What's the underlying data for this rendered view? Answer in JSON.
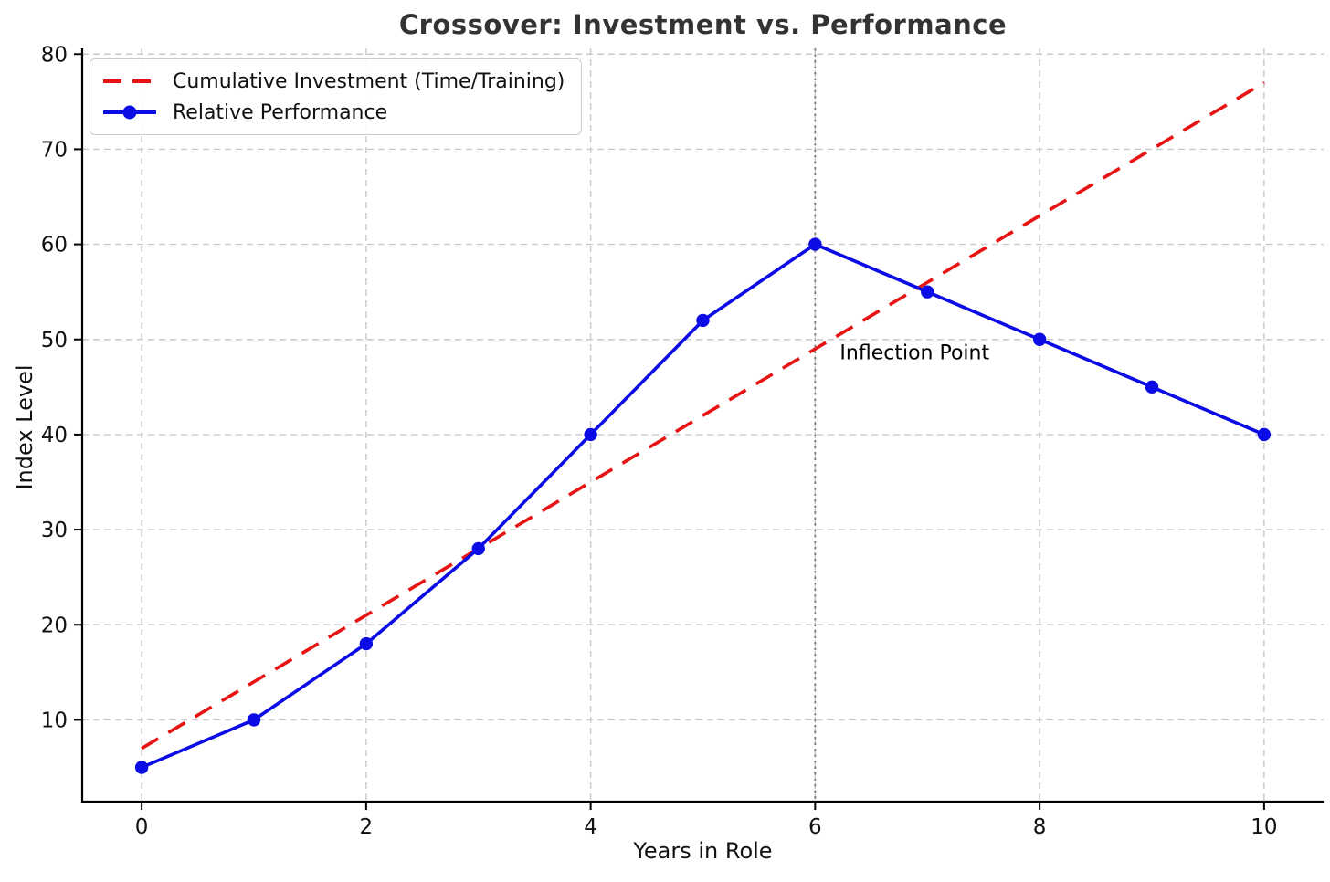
{
  "chart_data": {
    "type": "line",
    "title": "Crossover: Investment vs. Performance",
    "xlabel": "Years in Role",
    "ylabel": "Index Level",
    "x": [
      0,
      1,
      2,
      3,
      4,
      5,
      6,
      7,
      8,
      9,
      10
    ],
    "series": [
      {
        "name": "Cumulative Investment (Time/Training)",
        "values": [
          7,
          14,
          21,
          28,
          35,
          42,
          49,
          56,
          63,
          70,
          77
        ],
        "color": "#e81414",
        "style": "dashed",
        "marker": "none"
      },
      {
        "name": "Relative Performance",
        "values": [
          5,
          10,
          18,
          28,
          40,
          52,
          60,
          55,
          50,
          45,
          40
        ],
        "color": "#0b0be6",
        "style": "solid",
        "marker": "circle"
      }
    ],
    "xticks": [
      0,
      2,
      4,
      6,
      8,
      10
    ],
    "yticks": [
      10,
      20,
      30,
      40,
      50,
      60,
      70,
      80
    ],
    "xlim": [
      -0.53,
      10.53
    ],
    "ylim": [
      1.4,
      80.6
    ],
    "grid": true,
    "legend_position": "upper-left",
    "annotation": {
      "text": "Inflection Point",
      "x": 6,
      "label_x": 6.22,
      "label_y": 48.5,
      "line_color": "#787878"
    }
  },
  "colors": {
    "grid": "#c9c9c9",
    "spine": "#000000",
    "tick_text": "#111111",
    "title_text": "#333333",
    "annotation_text": "#000000",
    "legend_border": "#cccccc"
  }
}
